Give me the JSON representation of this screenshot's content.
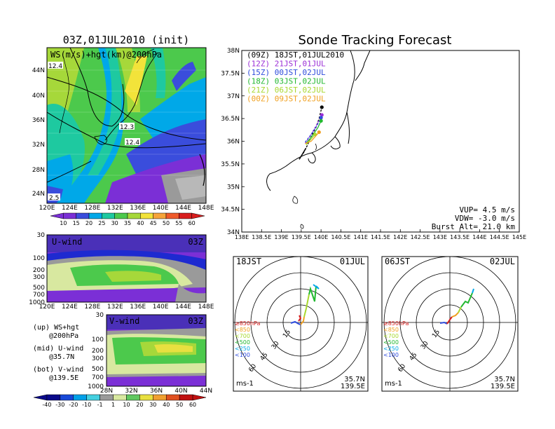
{
  "colors": {
    "ws_scale": [
      "#7b2fd6",
      "#3a4ddc",
      "#00a8e8",
      "#1ec9a0",
      "#4cc94c",
      "#a6d83a",
      "#f2e33a",
      "#f6a43a",
      "#ef5a2a",
      "#d81e1e"
    ],
    "anom_scale": [
      "#0a0a8a",
      "#1848d8",
      "#00a0e8",
      "#44d0e0",
      "#9a9a9a",
      "#d8e8a0",
      "#60c860",
      "#e8e040",
      "#f0a030",
      "#e05020",
      "#c01010"
    ],
    "traj": [
      "#000000",
      "#9b2fd6",
      "#2e4bdc",
      "#22b830",
      "#a8d830",
      "#f0a020"
    ]
  },
  "left_top": {
    "title": "03Z,01JUL2010 (init)",
    "label": "WS(m/s)+hgt(km)@200hPa",
    "lat_ticks": [
      "44N",
      "40N",
      "36N",
      "32N",
      "28N",
      "24N"
    ],
    "lon_ticks": [
      "120E",
      "124E",
      "128E",
      "132E",
      "136E",
      "140E",
      "144E",
      "148E"
    ],
    "contours": [
      "12.4",
      "12.3",
      "12.4",
      "2.5"
    ],
    "colorbar": [
      "10",
      "15",
      "20",
      "25",
      "30",
      "35",
      "40",
      "45",
      "50",
      "55",
      "60"
    ]
  },
  "u_panel": {
    "label": "U-wind",
    "time": "03Z",
    "p_ticks": [
      "30",
      "100",
      "200",
      "300",
      "500",
      "700",
      "1000"
    ],
    "lon_ticks": [
      "120E",
      "124E",
      "128E",
      "132E",
      "136E",
      "140E",
      "144E",
      "148E"
    ]
  },
  "v_panel": {
    "label": "V-wind",
    "time": "03Z",
    "p_ticks": [
      "30",
      "100",
      "200",
      "300",
      "500",
      "700",
      "1000"
    ],
    "lat_ticks": [
      "28N",
      "32N",
      "36N",
      "40N",
      "44N"
    ],
    "colorbar": [
      "-40",
      "-30",
      "-20",
      "-10",
      "-1",
      "1",
      "10",
      "20",
      "30",
      "40",
      "50",
      "60"
    ]
  },
  "legend": {
    "l1": "(up) WS+hgt",
    "l2": "@200hPa",
    "l3": "(mid) U-wind",
    "l4": "@35.7N",
    "l5": "(bot) V-wind",
    "l6": "@139.5E"
  },
  "tracking": {
    "title": "Sonde Tracking Forecast",
    "lat_ticks": [
      "38N",
      "37.5N",
      "37N",
      "36.5N",
      "36N",
      "35.5N",
      "35N",
      "34.5N",
      "34N"
    ],
    "lon_ticks": [
      "138E",
      "138.5E",
      "139E",
      "139.5E",
      "140E",
      "140.5E",
      "141E",
      "141.5E",
      "142E",
      "142.5E",
      "143E",
      "143.5E",
      "144E",
      "144.5E",
      "145E"
    ],
    "runs": [
      "(09Z) 18JST,01JUL2010",
      "(12Z) 21JST,01JUL",
      "(15Z) 00JST,02JUL",
      "(18Z) 03JST,02JUL",
      "(21Z) 06JST,02JUL",
      "(00Z) 09JST,02JUL"
    ],
    "vup": "VUP= 4.5 m/s",
    "vdw": "VDW= -3.0 m/s",
    "burst": "Burst Alt= 21.0 km"
  },
  "hodo1": {
    "time": "18JST",
    "date": "01JUL",
    "lat": "35.7N",
    "lon": "139.5E",
    "unit": "ms-1"
  },
  "hodo2": {
    "time": "06JST",
    "date": "02JUL",
    "lat": "35.7N",
    "lon": "139.5E",
    "unit": "ms-1"
  },
  "hodo_rings": [
    "15",
    "30",
    "45",
    "60"
  ],
  "hodo_levels": [
    "≥850hPa",
    "<850",
    "<700",
    "<500",
    "<250",
    "<100"
  ],
  "chart_data": [
    {
      "type": "heatmap",
      "title": "03Z,01JUL2010 (init)",
      "label": "WS(m/s)+hgt(km)@200hPa",
      "x_range": [
        "120E",
        "148E"
      ],
      "y_range": [
        "24N",
        "44N"
      ],
      "colorbar": [
        10,
        15,
        20,
        25,
        30,
        35,
        40,
        45,
        50,
        55,
        60
      ],
      "contour_labels": [
        "12.4",
        "12.3",
        "12.4",
        "2.5"
      ]
    },
    {
      "type": "heatmap",
      "label": "U-wind",
      "x_range": [
        "120E",
        "148E"
      ],
      "y_ticks": [
        30,
        100,
        200,
        300,
        500,
        700,
        1000
      ]
    },
    {
      "type": "heatmap",
      "label": "V-wind",
      "x_range": [
        "28N",
        "44N"
      ],
      "y_ticks": [
        30,
        100,
        200,
        300,
        500,
        700,
        1000
      ],
      "colorbar": [
        -40,
        -30,
        -20,
        -10,
        -1,
        1,
        10,
        20,
        30,
        40,
        50,
        60
      ]
    },
    {
      "type": "line",
      "title": "Sonde Tracking Forecast",
      "xlim": [
        138,
        145
      ],
      "ylim": [
        34,
        38
      ],
      "series": [
        {
          "name": "(09Z) 18JST,01JUL2010",
          "x": [
            139.55,
            139.65,
            139.75,
            139.87,
            139.95,
            140.02
          ],
          "y": [
            35.73,
            35.9,
            36.1,
            36.3,
            36.5,
            36.75
          ]
        },
        {
          "name": "(12Z) 21JST,01JUL",
          "x": [
            139.6,
            139.75,
            139.9,
            140.02
          ],
          "y": [
            35.95,
            36.15,
            36.38,
            36.58
          ]
        },
        {
          "name": "(15Z) 00JST,02JUL",
          "x": [
            139.6,
            139.75,
            139.9,
            140.0
          ],
          "y": [
            35.98,
            36.15,
            36.35,
            36.52
          ]
        },
        {
          "name": "(18Z) 03JST,02JUL",
          "x": [
            139.62,
            139.78,
            139.92,
            140.0
          ],
          "y": [
            35.95,
            36.12,
            36.3,
            36.45
          ]
        },
        {
          "name": "(21Z) 06JST,02JUL",
          "x": [
            139.62,
            139.75,
            139.85
          ],
          "y": [
            35.92,
            36.05,
            36.15
          ]
        },
        {
          "name": "(00Z) 09JST,02JUL",
          "x": [
            139.6,
            139.75,
            139.85,
            139.95
          ],
          "y": [
            35.95,
            36.0,
            36.1,
            36.2
          ]
        }
      ]
    }
  ]
}
